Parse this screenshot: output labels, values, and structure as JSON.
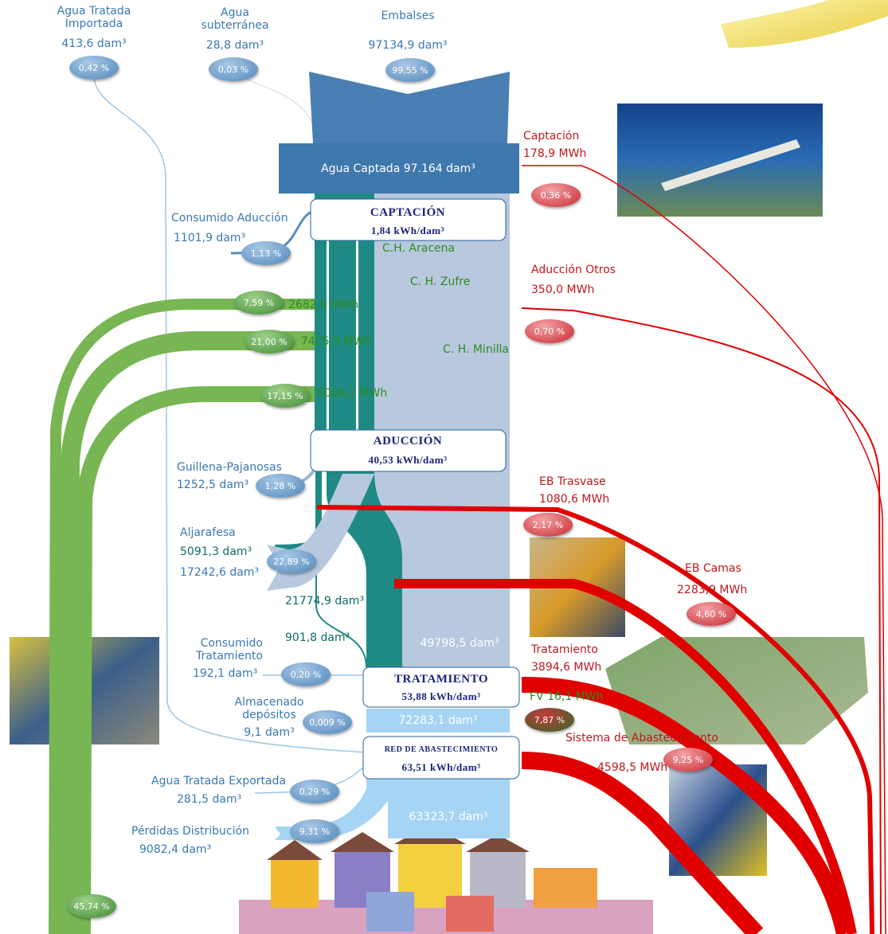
{
  "sources": [
    {
      "name": "Agua Tratada Importada",
      "volume": "413,6 dam³",
      "share": "0,42 %"
    },
    {
      "name": "Agua subterránea",
      "volume": "28,8 dam³",
      "share": "0,03 %"
    },
    {
      "name": "Embalses",
      "volume": "97134,9 dam³",
      "share": "99,55 %"
    }
  ],
  "captada": "Agua Captada 97.164 dam³",
  "stages": [
    {
      "name": "CAPTACIÓN",
      "intensity": "1,84 kWh/dam³"
    },
    {
      "name": "ADUCCIÓN",
      "intensity": "40,53 kWh/dam³"
    },
    {
      "name": "TRATAMIENTO",
      "intensity": "53,88 kWh/dam³"
    },
    {
      "name": "RED DE ABASTECIMIENTO",
      "intensity": "63,51 kWh/dam³"
    }
  ],
  "water_flows": [
    {
      "name": "Consumido Aducción",
      "volume": "1101,9 dam³",
      "share": "1,13 %"
    },
    {
      "name": "Guillena-Pajanosas",
      "volume": "1252,5 dam³",
      "share": "1,28 %"
    },
    {
      "name": "Aljarafesa",
      "volume": "5091,3 dam³",
      "volume2": "17242,6 dam³",
      "share": "22,89 %"
    },
    {
      "name": "Consumido Tratamiento",
      "volume": "192,1 dam³",
      "share": "0,20 %"
    },
    {
      "name": "Almacenado depósitos",
      "volume": "9,1 dam³",
      "share": "0,009 %"
    },
    {
      "name": "Agua Tratada Exportada",
      "volume": "281,5 dam³",
      "share": "0,29 %"
    },
    {
      "name": "Pérdidas Distribución",
      "volume": "9082,4 dam³",
      "share": "9,31 %"
    }
  ],
  "flow_labels": [
    "21774,9 dam³",
    "901,8 dam³",
    "49798,5 dam³",
    "72283,1 dam³",
    "63323,7 dam³"
  ],
  "energy_flows": [
    {
      "name": "Captación",
      "energy": "178,9 MWh",
      "share": "0,36 %"
    },
    {
      "name": "C.H. Aracena",
      "energy": "2682,8 MWh",
      "share": "7,59 %"
    },
    {
      "name": "C. H. Zufre",
      "energy": "7425,9 MWh",
      "share": "21,00 %"
    },
    {
      "name": "C. H. Minilla",
      "energy": "6064,2 MWh",
      "share": "17,15 %"
    },
    {
      "name": "Aducción Otros",
      "energy": "350,0 MWh",
      "share": "0,70 %"
    },
    {
      "name": "EB Trasvase",
      "energy": "1080,6 MWh",
      "share": "2,17 %"
    },
    {
      "name": "EB Camas",
      "energy": "2283,9 MWh",
      "share": "4,60 %"
    },
    {
      "name": "Tratamiento",
      "energy": "3894,6 MWh",
      "share": "7,87 %"
    },
    {
      "name": "Sistema de Abastecimiento",
      "energy": "4598,5 MWh",
      "share": "9,25 %"
    }
  ],
  "fv": "FV 16,1 MWh",
  "hydro_total_share": "45,74 %"
}
